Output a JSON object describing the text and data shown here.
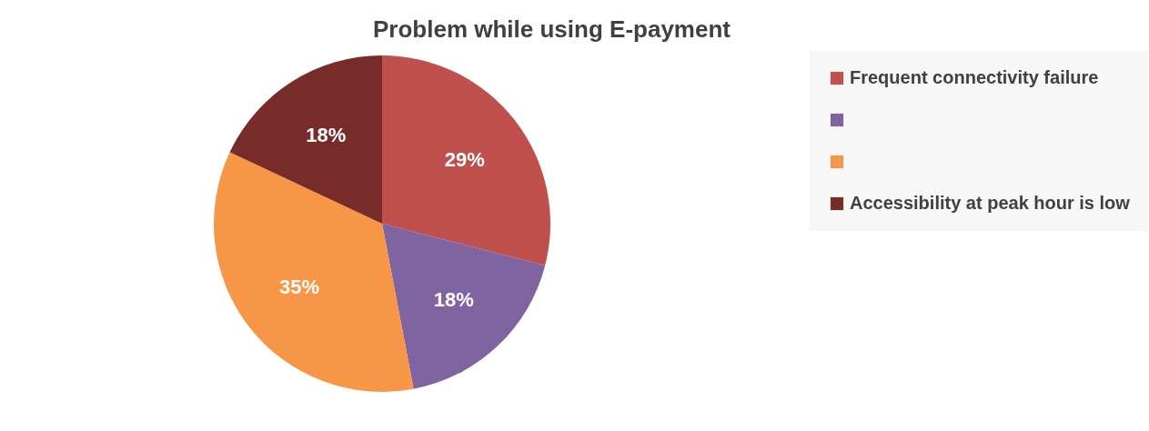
{
  "chart_data": {
    "type": "pie",
    "title": "Problem while using E-payment",
    "categories": [
      "Frequent connectivity failure",
      null,
      null,
      "Accessibility at peak hour is low"
    ],
    "values": [
      29,
      18,
      35,
      18
    ],
    "colors": [
      "#c0504d",
      "#8064a2",
      "#f79646",
      "#772c2a"
    ],
    "value_labels": [
      "29%",
      "18%",
      "35%",
      "18%"
    ],
    "legend": "right"
  }
}
